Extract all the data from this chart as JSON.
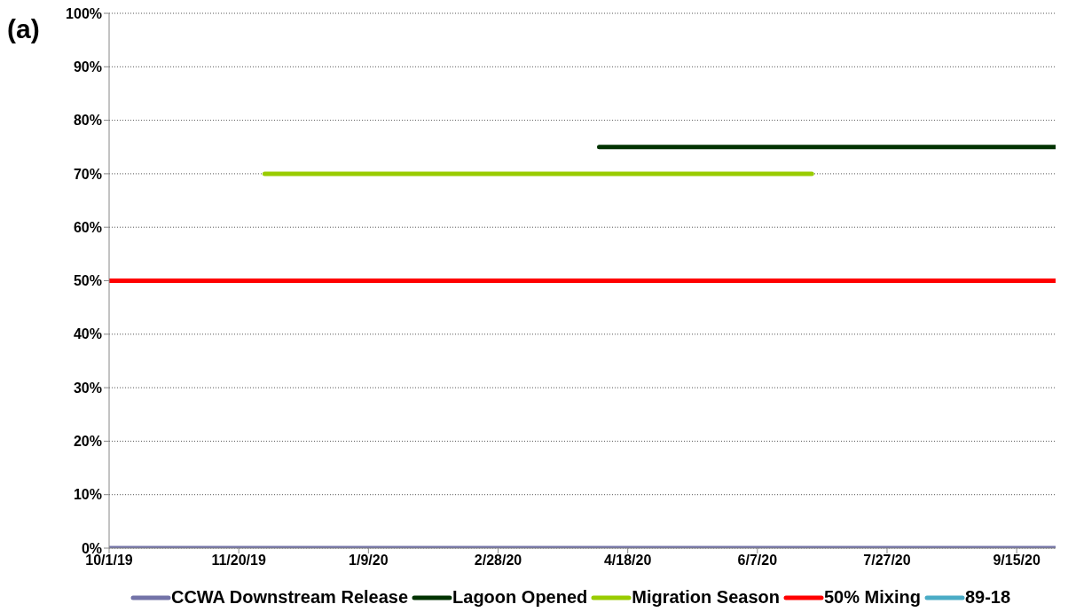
{
  "chart_data": {
    "type": "line",
    "annotations": [
      "(a)"
    ],
    "xlim": [
      "2019-10-01",
      "2020-09-30"
    ],
    "xticks": [
      {
        "value": "2019-10-01",
        "label": "10/1/19"
      },
      {
        "value": "2019-11-20",
        "label": "11/20/19"
      },
      {
        "value": "2020-01-09",
        "label": "1/9/20"
      },
      {
        "value": "2020-02-28",
        "label": "2/28/20"
      },
      {
        "value": "2020-04-18",
        "label": "4/18/20"
      },
      {
        "value": "2020-06-07",
        "label": "6/7/20"
      },
      {
        "value": "2020-07-27",
        "label": "7/27/20"
      },
      {
        "value": "2020-09-15",
        "label": "9/15/20"
      }
    ],
    "ylim": [
      0,
      100
    ],
    "yticks": [
      {
        "value": 0,
        "label": "0%"
      },
      {
        "value": 10,
        "label": "10%"
      },
      {
        "value": 20,
        "label": "20%"
      },
      {
        "value": 30,
        "label": "30%"
      },
      {
        "value": 40,
        "label": "40%"
      },
      {
        "value": 50,
        "label": "50%"
      },
      {
        "value": 60,
        "label": "60%"
      },
      {
        "value": 70,
        "label": "70%"
      },
      {
        "value": 80,
        "label": "80%"
      },
      {
        "value": 90,
        "label": "90%"
      },
      {
        "value": 100,
        "label": "100%"
      }
    ],
    "grid": "y",
    "legend": "bottom",
    "series": [
      {
        "name": "CCWA Downstream Release",
        "color": "#7373a8",
        "x": [
          "2019-10-01",
          "2020-09-30"
        ],
        "values": [
          0,
          0
        ]
      },
      {
        "name": "Lagoon Opened",
        "color": "#003300",
        "x": [
          "2020-04-07",
          "2020-09-30"
        ],
        "values": [
          75,
          75
        ]
      },
      {
        "name": "Migration Season",
        "color": "#99cc00",
        "x": [
          "2019-11-30",
          "2020-06-28"
        ],
        "values": [
          70,
          70
        ]
      },
      {
        "name": "50% Mixing",
        "color": "#ff0000",
        "x": [
          "2019-10-01",
          "2020-09-30"
        ],
        "values": [
          50,
          50
        ]
      },
      {
        "name": "89-18",
        "color": "#4bacc6"
      }
    ]
  }
}
